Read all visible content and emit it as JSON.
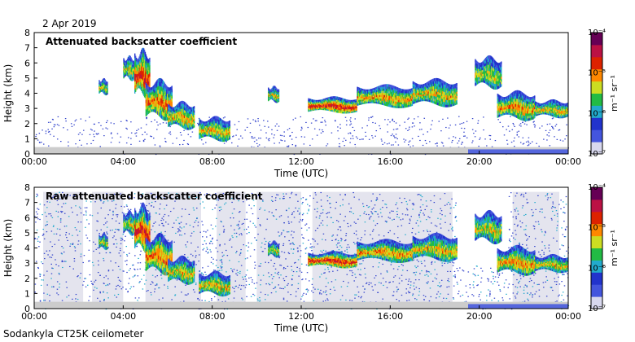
{
  "date_label": "2 Apr 2019",
  "footer_label": "Sodankyla CT25K ceilometer",
  "colors": {
    "colorbar": [
      "#d8d8ee",
      "#4455dd",
      "#2233cc",
      "#22aacc",
      "#22bb44",
      "#ccdd22",
      "#ff8800",
      "#dd2200",
      "#bb1144",
      "#660055"
    ],
    "ground_noise": "#cccccc",
    "background": "#ffffff"
  },
  "chart_data": [
    {
      "type": "heatmap",
      "title": "Attenuated backscatter coefficient",
      "xlabel": "Time (UTC)",
      "ylabel": "Height (km)",
      "xticks": [
        "00:00",
        "04:00",
        "08:00",
        "12:00",
        "16:00",
        "20:00",
        "00:00"
      ],
      "yticks": [
        "0",
        "1",
        "2",
        "3",
        "4",
        "5",
        "6",
        "7",
        "8"
      ],
      "xlim_hours": [
        0,
        24
      ],
      "ylim_km": [
        0,
        8
      ],
      "colorbar": {
        "unit": "m⁻¹ sr⁻¹",
        "ticks": [
          "10⁻⁷",
          "10⁻⁶",
          "10⁻⁵",
          "10⁻⁴"
        ],
        "scale": "log"
      }
    },
    {
      "type": "heatmap",
      "title": "Raw attenuated backscatter coefficient",
      "xlabel": "Time (UTC)",
      "ylabel": "Height (km)",
      "xticks": [
        "00:00",
        "04:00",
        "08:00",
        "12:00",
        "16:00",
        "20:00",
        "00:00"
      ],
      "yticks": [
        "0",
        "1",
        "2",
        "3",
        "4",
        "5",
        "6",
        "7",
        "8"
      ],
      "xlim_hours": [
        0,
        24
      ],
      "ylim_km": [
        0,
        8
      ],
      "colorbar": {
        "unit": "m⁻¹ sr⁻¹",
        "ticks": [
          "10⁻⁷",
          "10⁻⁶",
          "10⁻⁵",
          "10⁻⁴"
        ],
        "scale": "log"
      }
    }
  ]
}
